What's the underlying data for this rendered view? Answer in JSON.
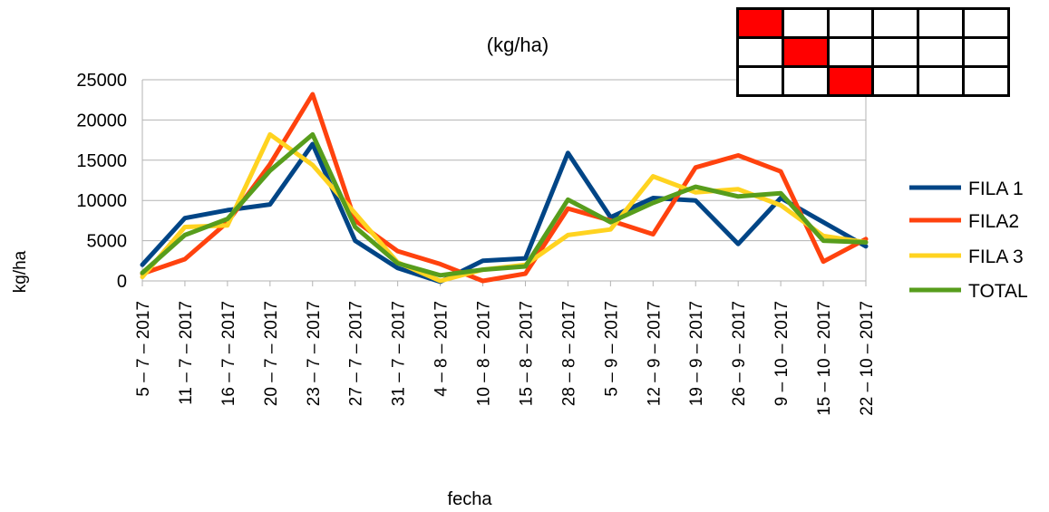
{
  "chart_data": {
    "type": "line",
    "title": "(kg/ha)",
    "xlabel": "fecha",
    "ylabel": "kg/ha",
    "ylim": [
      0,
      25000
    ],
    "yticks": [
      "0",
      "5000",
      "10000",
      "15000",
      "20000",
      "25000"
    ],
    "grid": "horizontal",
    "legend_position": "right",
    "categories": [
      "5 – 7 – 2017",
      "11 – 7 – 2017",
      "16 – 7 – 2017",
      "20 – 7 – 2017",
      "23 – 7 – 2017",
      "27 – 7 – 2017",
      "31 – 7 – 2017",
      "4 – 8 – 2017",
      "10 – 8 – 2017",
      "15 – 8 – 2017",
      "28 – 8 – 2017",
      "5 – 9 – 2017",
      "12 – 9 – 2017",
      "19 – 9 – 2017",
      "26 – 9 – 2017",
      "9 – 10 – 2017",
      "15 – 10 – 2017",
      "22 – 10 – 2017"
    ],
    "series": [
      {
        "name": "FILA 1",
        "color": "#004586",
        "values": [
          2000,
          7800,
          8800,
          9500,
          17000,
          5000,
          1600,
          -100,
          2500,
          2800,
          15900,
          7900,
          10300,
          10000,
          4600,
          10300,
          7300,
          4300
        ]
      },
      {
        "name": "FILA2",
        "color": "#ff420e",
        "values": [
          900,
          2700,
          7300,
          14500,
          23200,
          7500,
          3700,
          2100,
          0,
          900,
          9000,
          7500,
          5800,
          14100,
          15600,
          13600,
          2400,
          5200
        ]
      },
      {
        "name": "FILA 3",
        "color": "#ffd320",
        "values": [
          500,
          6700,
          6900,
          18200,
          14400,
          8400,
          2300,
          0,
          1400,
          2000,
          5700,
          6400,
          13000,
          11000,
          11400,
          9400,
          5600,
          4800
        ]
      },
      {
        "name": "TOTAL",
        "color": "#579d1c",
        "values": [
          1000,
          5700,
          7700,
          13700,
          18200,
          6700,
          2200,
          700,
          1400,
          1800,
          10100,
          7300,
          9700,
          11700,
          10500,
          10900,
          5000,
          4800
        ]
      }
    ]
  },
  "indicator": {
    "cols": 6,
    "rows": [
      [
        1,
        0,
        0,
        0,
        0,
        0
      ],
      [
        0,
        1,
        0,
        0,
        0,
        0
      ],
      [
        0,
        0,
        1,
        0,
        0,
        0
      ]
    ],
    "on_color": "#ff0000"
  }
}
